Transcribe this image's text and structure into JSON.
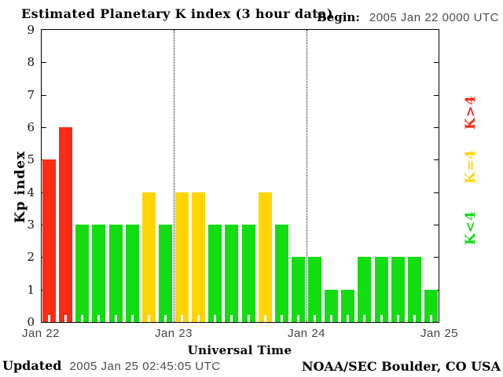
{
  "header": {
    "title": "Estimated Planetary K index (3 hour data)",
    "begin_label": "Begin:",
    "begin_value": "2005 Jan 22 0000 UTC"
  },
  "y_axis": {
    "label": "Kp index",
    "ticks": [
      9,
      8,
      7,
      6,
      5,
      4,
      3,
      2,
      1,
      0
    ]
  },
  "x_axis": {
    "label": "Universal Time",
    "day_labels": [
      "Jan 22",
      "Jan 23",
      "Jan 24",
      "Jan 25"
    ]
  },
  "legend": {
    "items": [
      {
        "label": "K>4",
        "color": "#fb2b14"
      },
      {
        "label": "K=4",
        "color": "#ffd400"
      },
      {
        "label": "K<4",
        "color": "#11dd11"
      }
    ]
  },
  "footer": {
    "updated_label": "Updated",
    "updated_value": "2005 Jan 25 02:45:05 UTC",
    "credit": "NOAA/SEC Boulder, CO USA"
  },
  "chart_data": {
    "type": "bar",
    "title": "Estimated Planetary K index (3 hour data)",
    "xlabel": "Universal Time",
    "ylabel": "Kp index",
    "ylim": [
      0,
      9
    ],
    "y_ticks": [
      0,
      1,
      2,
      3,
      4,
      5,
      6,
      7,
      8,
      9
    ],
    "begin": "2005 Jan 22 0000 UTC",
    "interval_hours": 3,
    "grid": "none",
    "legend_position": "right",
    "day_boundaries_dotted": true,
    "days": [
      "Jan 22",
      "Jan 23",
      "Jan 24"
    ],
    "values": [
      5,
      6,
      3,
      3,
      3,
      3,
      4,
      3,
      4,
      4,
      3,
      3,
      3,
      4,
      3,
      2,
      2,
      1,
      1,
      2,
      2,
      2,
      2,
      1
    ],
    "values_by_day": {
      "Jan 22": [
        5,
        6,
        3,
        3,
        3,
        3,
        4,
        3
      ],
      "Jan 23": [
        4,
        4,
        3,
        3,
        3,
        4,
        3,
        2
      ],
      "Jan 24": [
        2,
        1,
        1,
        2,
        2,
        2,
        2,
        1
      ]
    },
    "color_rules": {
      "k_gt_4": "#fb2b14",
      "k_eq_4": "#ffd400",
      "k_lt_4": "#11dd11"
    }
  }
}
